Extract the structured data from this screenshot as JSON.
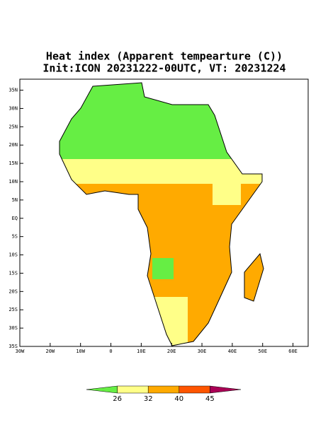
{
  "title": "Heat index (Apparent tempearture (C))",
  "subtitle": "Init:ICON 20231222-00UTC, VT: 20231224",
  "map": {
    "xlim": [
      -30,
      65
    ],
    "ylim": [
      -35,
      38
    ],
    "lat_ticks": [
      {
        "value": 35,
        "label": "35N"
      },
      {
        "value": 30,
        "label": "30N"
      },
      {
        "value": 25,
        "label": "25N"
      },
      {
        "value": 20,
        "label": "20N"
      },
      {
        "value": 15,
        "label": "15N"
      },
      {
        "value": 10,
        "label": "10N"
      },
      {
        "value": 5,
        "label": "5N"
      },
      {
        "value": 0,
        "label": "EQ"
      },
      {
        "value": -5,
        "label": "5S"
      },
      {
        "value": -10,
        "label": "10S"
      },
      {
        "value": -15,
        "label": "15S"
      },
      {
        "value": -20,
        "label": "20S"
      },
      {
        "value": -25,
        "label": "25S"
      },
      {
        "value": -30,
        "label": "30S"
      },
      {
        "value": -35,
        "label": "35S"
      }
    ],
    "lon_ticks": [
      {
        "value": -30,
        "label": "30W"
      },
      {
        "value": -20,
        "label": "20W"
      },
      {
        "value": -10,
        "label": "10W"
      },
      {
        "value": 0,
        "label": "0"
      },
      {
        "value": 10,
        "label": "10E"
      },
      {
        "value": 20,
        "label": "20E"
      },
      {
        "value": 30,
        "label": "30E"
      },
      {
        "value": 40,
        "label": "40E"
      },
      {
        "value": 50,
        "label": "50E"
      },
      {
        "value": 60,
        "label": "60E"
      }
    ]
  },
  "colorbar": {
    "colors": [
      "#66ee44",
      "#ffff88",
      "#ffaa00",
      "#ff5500",
      "#aa0055"
    ],
    "ticks": [
      26,
      32,
      40,
      45
    ]
  }
}
